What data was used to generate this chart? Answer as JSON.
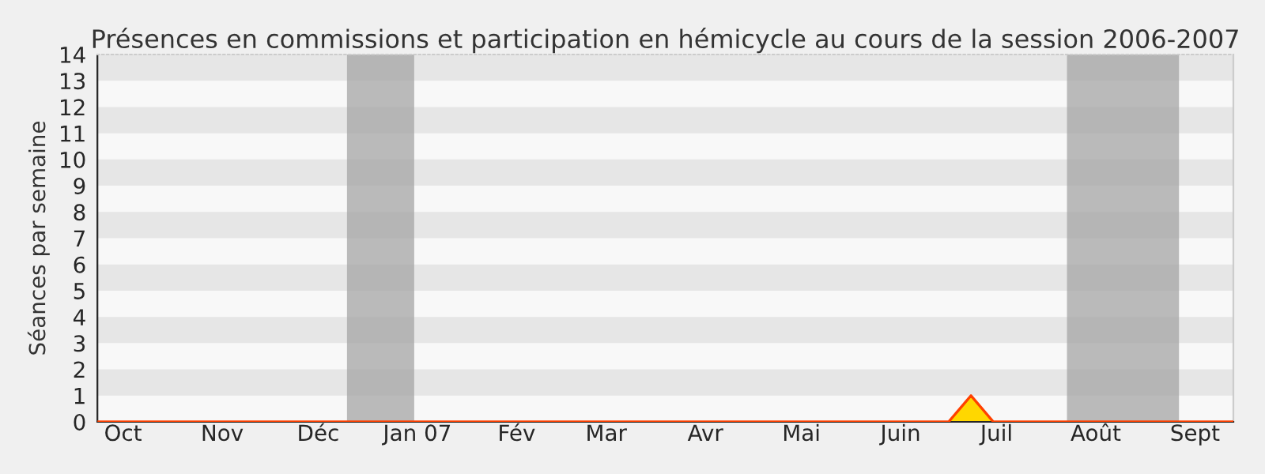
{
  "chart_data": {
    "type": "area",
    "title": "Présences en commissions et participation en hémicycle au cours de la session 2006-2007",
    "ylabel": "Séances par semaine",
    "series": [
      {
        "color": "#ffd700",
        "x": [
          "2006-09-23",
          "2007-06-16",
          "2007-06-23",
          "2007-06-30",
          "2007-09-13"
        ],
        "values": [
          0,
          0,
          1,
          0,
          0
        ]
      }
    ],
    "xlim": [
      "2006-09-23",
      "2007-09-13"
    ],
    "ylim": [
      0,
      14
    ],
    "yticks": [
      0,
      1,
      2,
      3,
      4,
      5,
      6,
      7,
      8,
      9,
      10,
      11,
      12,
      13,
      14
    ],
    "xticks": [
      {
        "value": "2006-10-01",
        "label": "Oct"
      },
      {
        "value": "2006-11-01",
        "label": "Nov"
      },
      {
        "value": "2006-12-01",
        "label": "Déc"
      },
      {
        "value": "2007-01-01",
        "label": "Jan 07"
      },
      {
        "value": "2007-02-01",
        "label": "Fév"
      },
      {
        "value": "2007-03-01",
        "label": "Mar"
      },
      {
        "value": "2007-04-01",
        "label": "Avr"
      },
      {
        "value": "2007-05-01",
        "label": "Mai"
      },
      {
        "value": "2007-06-01",
        "label": "Juin"
      },
      {
        "value": "2007-07-01",
        "label": "Juil"
      },
      {
        "value": "2007-08-01",
        "label": "Août"
      },
      {
        "value": "2007-09-01",
        "label": "Sept"
      }
    ],
    "bands": [
      {
        "axis": "x",
        "from": "2006-12-10",
        "to": "2006-12-31",
        "color": "#a0a0a0"
      },
      {
        "axis": "x",
        "from": "2007-07-23",
        "to": "2007-08-27",
        "color": "#a0a0a0"
      }
    ]
  }
}
